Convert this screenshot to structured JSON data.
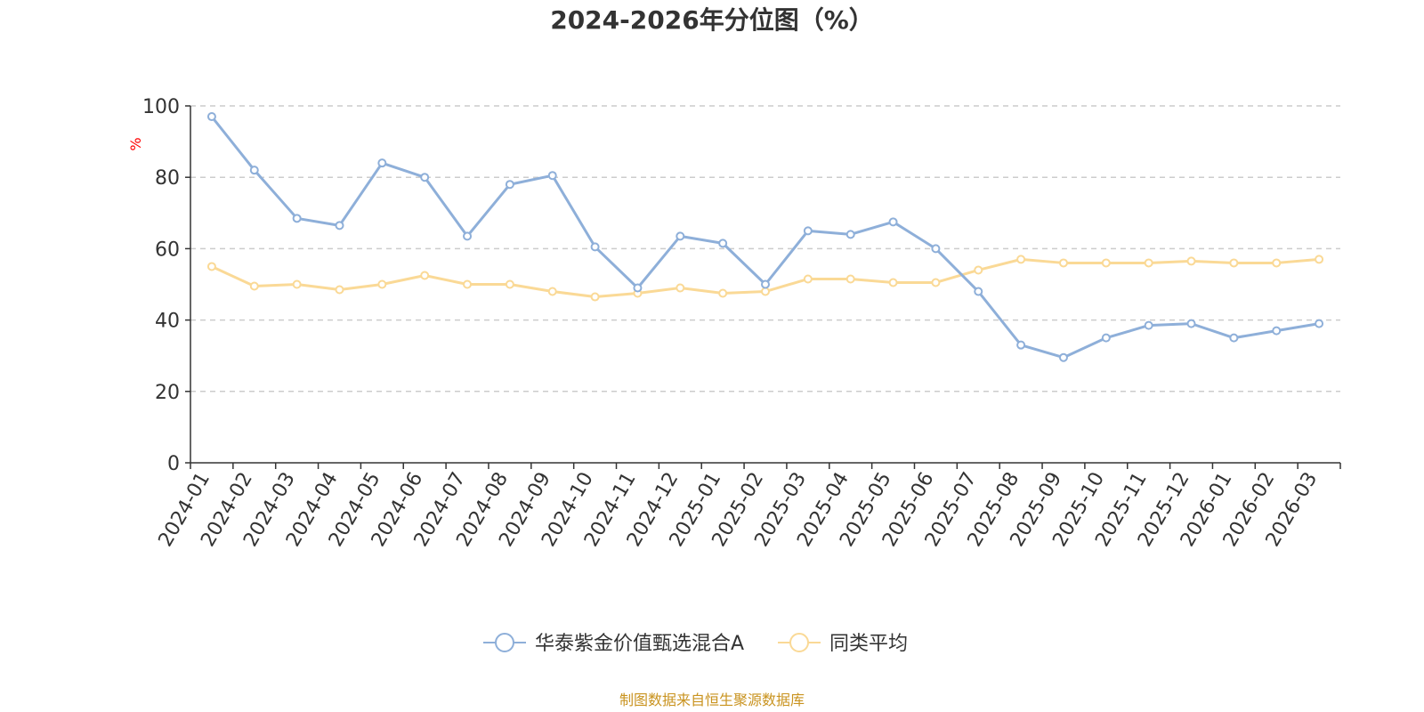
{
  "chart_data": {
    "type": "line",
    "title": "2024-2026年分位图（%）",
    "y_unit": "%",
    "ylim": [
      0,
      100
    ],
    "yticks": [
      0,
      20,
      40,
      60,
      80,
      100
    ],
    "grid": true,
    "legend_position": "bottom",
    "categories": [
      "2024-01",
      "2024-02",
      "2024-03",
      "2024-04",
      "2024-05",
      "2024-06",
      "2024-07",
      "2024-08",
      "2024-09",
      "2024-10",
      "2024-11",
      "2024-12",
      "2025-01",
      "2025-02",
      "2025-03",
      "2025-04",
      "2025-05",
      "2025-06",
      "2025-07",
      "2025-08",
      "2025-09",
      "2025-10",
      "2025-11",
      "2025-12",
      "2026-01",
      "2026-02",
      "2026-03"
    ],
    "series": [
      {
        "name": "华泰紫金价值甄选混合A",
        "color": "#8eafd9",
        "values": [
          97,
          82,
          68.5,
          66.5,
          84,
          80,
          63.5,
          78,
          80.5,
          60.5,
          49,
          63.5,
          61.5,
          50,
          65,
          64,
          67.5,
          60,
          48,
          33,
          29.5,
          35,
          38.5,
          39,
          35,
          37,
          39
        ]
      },
      {
        "name": "同类平均",
        "color": "#fad996",
        "values": [
          55,
          49.5,
          50,
          48.5,
          50,
          52.5,
          50,
          50,
          48,
          46.5,
          47.5,
          49,
          47.5,
          48,
          51.5,
          51.5,
          50.5,
          50.5,
          54,
          57,
          56,
          56,
          56,
          56.5,
          56,
          56,
          57
        ]
      }
    ],
    "source": "制图数据来自恒生聚源数据库",
    "source_color": "#c9931f",
    "unit_color": "#ff0000"
  }
}
